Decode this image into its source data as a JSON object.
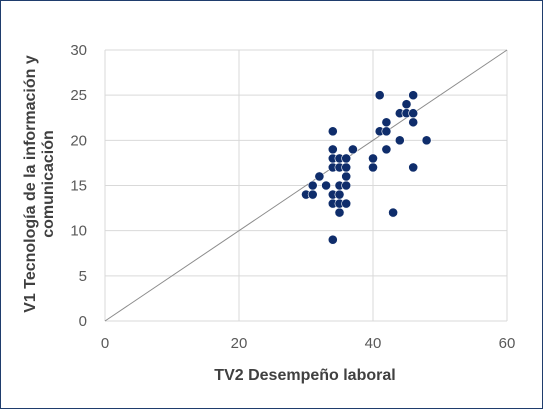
{
  "chart_data": {
    "type": "scatter",
    "title": "",
    "xlabel": "TV2 Desempeño laboral",
    "ylabel_line1": "V1 Tecnología de la información y",
    "ylabel_line2": "comunicación",
    "xlim": [
      0,
      60
    ],
    "ylim": [
      0,
      30
    ],
    "x_ticks": [
      0,
      20,
      40,
      60
    ],
    "y_ticks": [
      0,
      5,
      10,
      15,
      20,
      25,
      30
    ],
    "grid": true,
    "legend": "none",
    "trendline": {
      "x": [
        0,
        60
      ],
      "y": [
        0,
        30
      ]
    },
    "marker_color": "#0f2d6b",
    "line_color": "#8c8c8c",
    "points": [
      {
        "x": 30,
        "y": 14
      },
      {
        "x": 31,
        "y": 14
      },
      {
        "x": 31,
        "y": 15
      },
      {
        "x": 32,
        "y": 16
      },
      {
        "x": 33,
        "y": 15
      },
      {
        "x": 34,
        "y": 9
      },
      {
        "x": 34,
        "y": 13
      },
      {
        "x": 34,
        "y": 14
      },
      {
        "x": 34,
        "y": 17
      },
      {
        "x": 34,
        "y": 18
      },
      {
        "x": 34,
        "y": 19
      },
      {
        "x": 34,
        "y": 21
      },
      {
        "x": 35,
        "y": 12
      },
      {
        "x": 35,
        "y": 13
      },
      {
        "x": 35,
        "y": 14
      },
      {
        "x": 35,
        "y": 15
      },
      {
        "x": 35,
        "y": 17
      },
      {
        "x": 35,
        "y": 18
      },
      {
        "x": 36,
        "y": 13
      },
      {
        "x": 36,
        "y": 15
      },
      {
        "x": 36,
        "y": 16
      },
      {
        "x": 36,
        "y": 17
      },
      {
        "x": 36,
        "y": 18
      },
      {
        "x": 37,
        "y": 19
      },
      {
        "x": 40,
        "y": 17
      },
      {
        "x": 40,
        "y": 18
      },
      {
        "x": 41,
        "y": 21
      },
      {
        "x": 41,
        "y": 25
      },
      {
        "x": 42,
        "y": 19
      },
      {
        "x": 42,
        "y": 21
      },
      {
        "x": 42,
        "y": 22
      },
      {
        "x": 43,
        "y": 12
      },
      {
        "x": 44,
        "y": 20
      },
      {
        "x": 44,
        "y": 23
      },
      {
        "x": 45,
        "y": 23
      },
      {
        "x": 45,
        "y": 24
      },
      {
        "x": 46,
        "y": 17
      },
      {
        "x": 46,
        "y": 22
      },
      {
        "x": 46,
        "y": 23
      },
      {
        "x": 46,
        "y": 25
      },
      {
        "x": 48,
        "y": 20
      }
    ]
  }
}
